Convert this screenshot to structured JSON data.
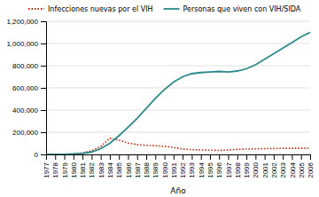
{
  "chart_data": {
    "type": "line",
    "xlabel": "Año",
    "x": [
      1977,
      1978,
      1979,
      1980,
      1981,
      1982,
      1983,
      1984,
      1985,
      1986,
      1987,
      1988,
      1989,
      1990,
      1991,
      1992,
      1993,
      1994,
      1995,
      1996,
      1997,
      1998,
      1999,
      2000,
      2001,
      2002,
      2003,
      2004,
      2005,
      2006
    ],
    "series": [
      {
        "name": "Infecciones nuevas por el VIH",
        "color": "#cc2200",
        "line_style": "dotted",
        "values": [
          0,
          0,
          1500,
          4000,
          13000,
          33000,
          72000,
          145000,
          128000,
          103000,
          88000,
          82000,
          78000,
          73000,
          63000,
          48000,
          43000,
          40000,
          38000,
          36000,
          40000,
          45000,
          48000,
          50000,
          52000,
          53000,
          55000,
          55000,
          55000,
          56000
        ]
      },
      {
        "name": "Personas que viven con VIH/SIDA",
        "color": "#2a8a8c",
        "line_style": "solid",
        "values": [
          0,
          0,
          1500,
          4000,
          9000,
          22000,
          52000,
          100000,
          168000,
          245000,
          325000,
          415000,
          505000,
          585000,
          652000,
          700000,
          728000,
          738000,
          743000,
          748000,
          743000,
          752000,
          772000,
          808000,
          858000,
          908000,
          958000,
          1008000,
          1060000,
          1100000
        ]
      }
    ],
    "xlim": [
      1977,
      2006
    ],
    "xticks": [
      1977,
      1978,
      1979,
      1980,
      1981,
      1982,
      1983,
      1984,
      1985,
      1986,
      1987,
      1988,
      1989,
      1990,
      1991,
      1992,
      1993,
      1994,
      1995,
      1996,
      1997,
      1998,
      1999,
      2000,
      2001,
      2002,
      2003,
      2004,
      2005,
      2006
    ],
    "ylim": [
      0,
      1200000
    ],
    "yticks": [
      0,
      {
        "value": 200000,
        "label": "200,000"
      },
      {
        "value": 400000,
        "label": "400,000"
      },
      {
        "value": 600000,
        "label": "600,000"
      },
      {
        "value": 800000,
        "label": "800,000"
      },
      {
        "value": 1000000,
        "label": "1,000,000"
      },
      {
        "value": 1200000,
        "label": "1,200,000"
      }
    ],
    "grid": true,
    "legend": "top"
  }
}
